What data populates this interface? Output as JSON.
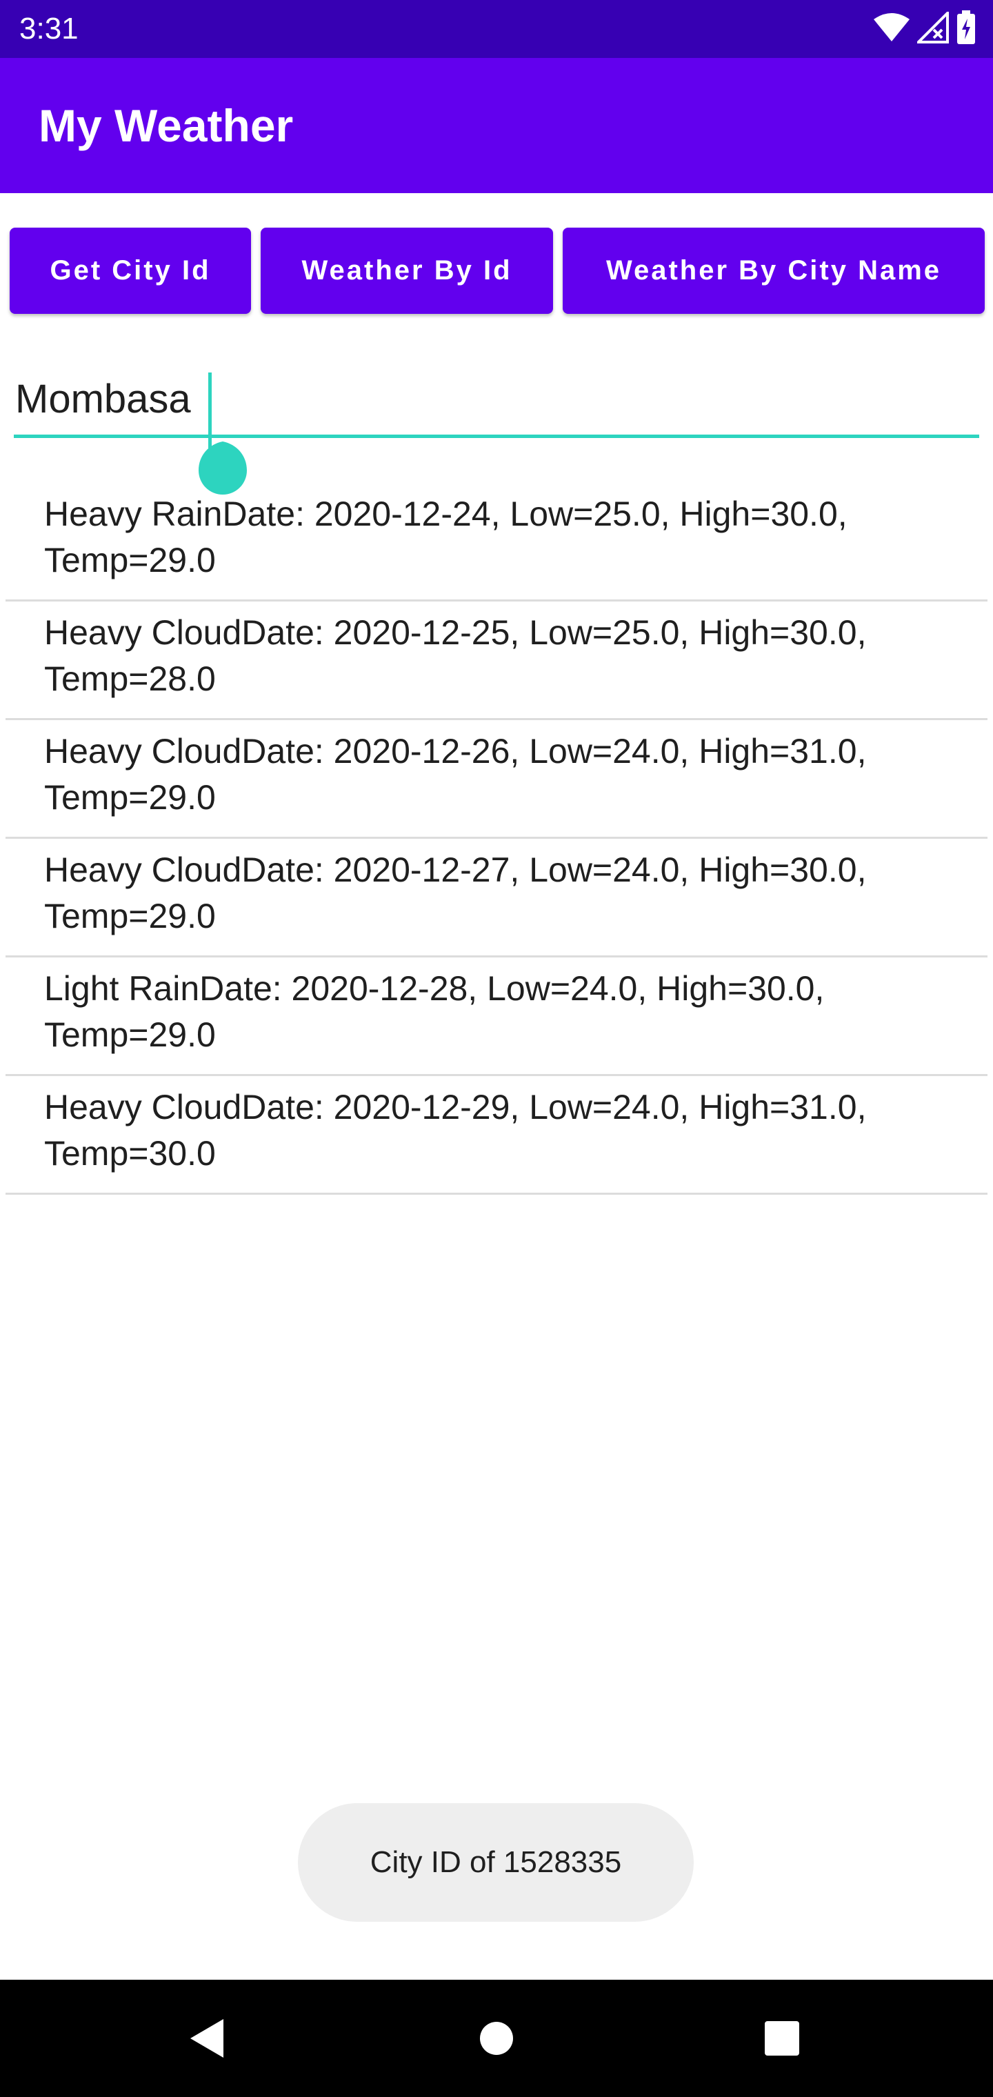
{
  "status_bar": {
    "time": "3:31",
    "icons": [
      "wifi-icon",
      "signal-icon",
      "battery-icon"
    ]
  },
  "app_bar": {
    "title": "My Weather",
    "color": "#6200ee"
  },
  "buttons": {
    "get_city_id": "Get City Id",
    "weather_by_id": "Weather By Id",
    "weather_by_city_name": "Weather By City Name"
  },
  "input": {
    "value": "Mombasa",
    "accent_color": "#2dd4bf"
  },
  "forecast": [
    {
      "line1": "Heavy RainDate: 2020-12-24, Low=25.0, High=30.0,",
      "line2": "Temp=29.0"
    },
    {
      "line1": "Heavy CloudDate: 2020-12-25, Low=25.0, High=30.0,",
      "line2": "Temp=28.0"
    },
    {
      "line1": "Heavy CloudDate: 2020-12-26, Low=24.0, High=31.0,",
      "line2": "Temp=29.0"
    },
    {
      "line1": "Heavy CloudDate: 2020-12-27, Low=24.0, High=30.0,",
      "line2": "Temp=29.0"
    },
    {
      "line1": "Light RainDate: 2020-12-28, Low=24.0, High=30.0,",
      "line2": "Temp=29.0"
    },
    {
      "line1": "Heavy CloudDate: 2020-12-29, Low=24.0, High=31.0,",
      "line2": "Temp=30.0"
    }
  ],
  "toast": {
    "text": "City ID of 1528335"
  },
  "nav": {
    "icons": [
      "back-icon",
      "home-icon",
      "recents-icon"
    ]
  }
}
